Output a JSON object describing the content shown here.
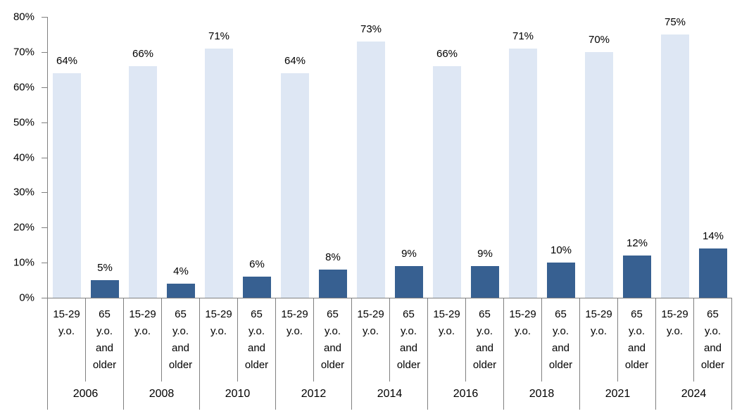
{
  "chart_data": {
    "type": "bar",
    "title": "",
    "xlabel": "",
    "ylabel": "",
    "years": [
      "2006",
      "2008",
      "2010",
      "2012",
      "2014",
      "2016",
      "2018",
      "2021",
      "2024"
    ],
    "series": [
      {
        "name": "15-29 y.o.",
        "label_lines": [
          "15-29",
          "y.o."
        ],
        "color": "#DEE7F4",
        "values": [
          64,
          66,
          71,
          64,
          73,
          66,
          71,
          70,
          75
        ]
      },
      {
        "name": "65 y.o. and older",
        "label_lines": [
          "65",
          "y.o.",
          "and",
          "older"
        ],
        "color": "#376091",
        "values": [
          5,
          4,
          6,
          8,
          9,
          9,
          10,
          12,
          14
        ]
      }
    ],
    "value_suffix": "%",
    "y_ticks": [
      "0%",
      "10%",
      "20%",
      "30%",
      "40%",
      "50%",
      "60%",
      "70%",
      "80%"
    ],
    "ylim": [
      0,
      80
    ],
    "grid": false,
    "legend": "none",
    "axis_color": "#808080",
    "text_color": "#000000",
    "background": "#FFFFFF"
  }
}
